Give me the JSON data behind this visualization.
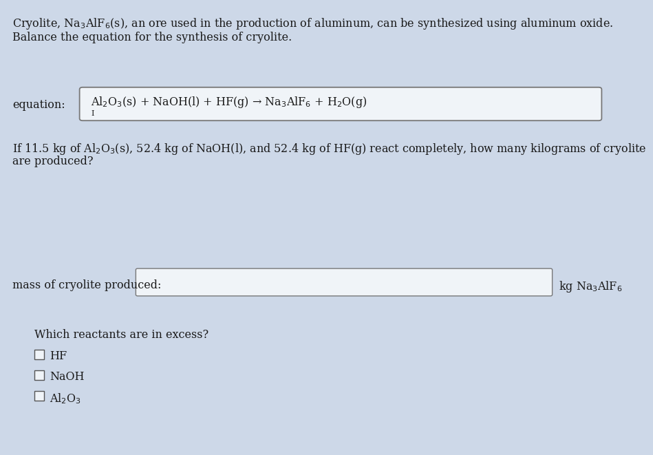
{
  "background_color": "#cdd8e8",
  "title_line1": "Cryolite, Na$_3$AlF$_6$(s), an ore used in the production of aluminum, can be synthesized using aluminum oxide.",
  "title_line2": "Balance the equation for the synthesis of cryolite.",
  "equation_label": "equation:",
  "equation_text": "Al$_2$O$_3$(s) + NaOH(l) + HF(g) → Na$_3$AlF$_6$ + H$_2$O(g)",
  "question_text": "If 11.5 kg of Al$_2$O$_3$(s), 52.4 kg of NaOH(l), and 52.4 kg of HF(g) react completely, how many kilograms of cryolite",
  "question_text2": "are produced?",
  "mass_label": "mass of cryolite produced:",
  "mass_unit": "kg Na$_3$AlF$_6$",
  "excess_label": "Which reactants are in excess?",
  "checkbox_items": [
    "HF",
    "NaOH",
    "Al$_2$O$_3$"
  ],
  "text_color": "#1a1a1a",
  "box_color": "#f0f4f8",
  "box_edge_color": "#777777",
  "font_size_main": 11.5
}
